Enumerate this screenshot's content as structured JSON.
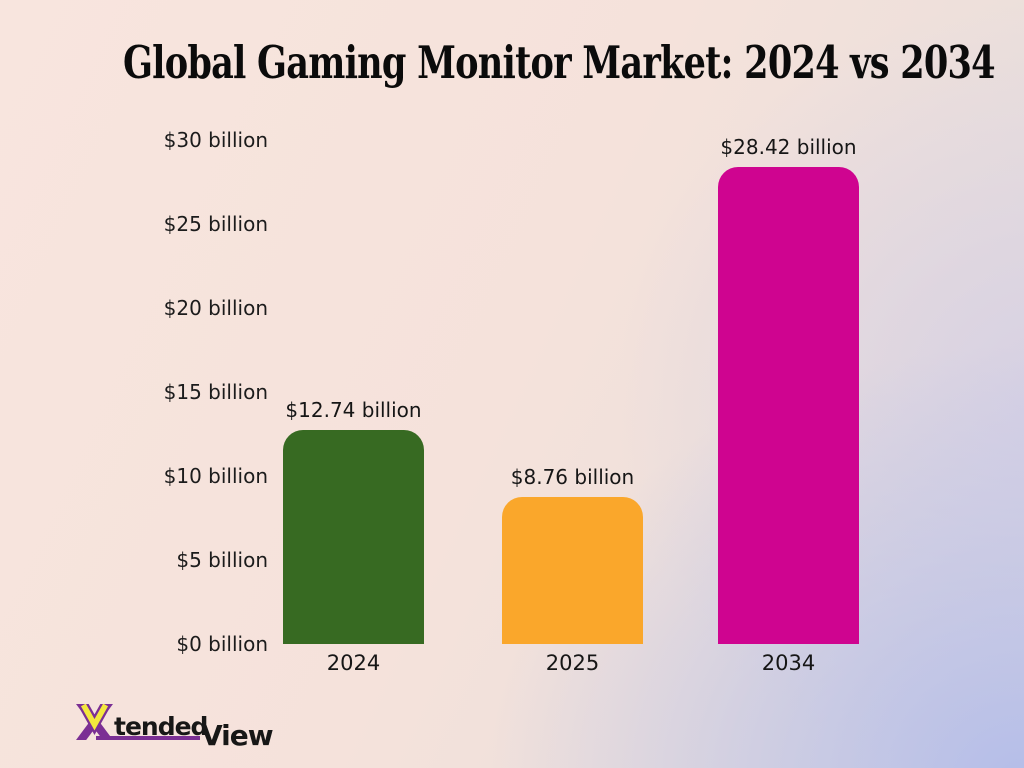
{
  "title": "Global Gaming Monitor Market: 2024 vs 2034",
  "chart_data": {
    "type": "bar",
    "categories": [
      "2024",
      "2025",
      "2034"
    ],
    "values": [
      12.74,
      8.76,
      28.42
    ],
    "value_labels": [
      "$12.74 billion",
      "$8.76 billion",
      "$28.42 billion"
    ],
    "bar_colors": [
      "#376a22",
      "#faa72b",
      "#cf0490"
    ],
    "ytick_values": [
      30,
      25,
      20,
      15,
      10,
      5,
      0
    ],
    "ytick_labels": [
      "$30 billion",
      "$25 billion",
      "$20 billion",
      "$15 billion",
      "$10 billion",
      "$5 billion",
      "$0 billion"
    ],
    "ylim": [
      0,
      30
    ],
    "xlabel": "",
    "ylabel": "",
    "grid": false,
    "legend": null,
    "title": "Global Gaming Monitor Market: 2024 vs 2034"
  },
  "logo": {
    "x": "X",
    "tended": "tended",
    "view": "View",
    "purple": "#7b2f94",
    "yellow": "#f3e83d"
  },
  "colors": {
    "title_text": "#0b0b0b",
    "label_text": "#1c1c1c",
    "bg_pink": "#f8e5de",
    "bg_periwinkle": "#b4bde9"
  }
}
